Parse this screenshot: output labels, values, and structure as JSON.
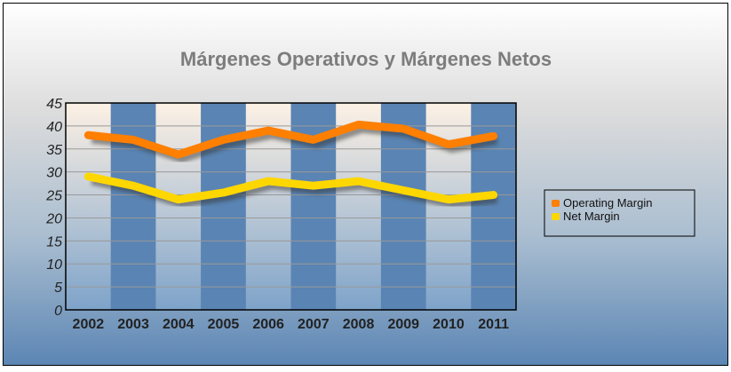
{
  "chart_data": {
    "type": "line",
    "title": "Márgenes Operativos y Márgenes Netos",
    "categories": [
      "2002",
      "2003",
      "2004",
      "2005",
      "2006",
      "2007",
      "2008",
      "2009",
      "2010",
      "2011"
    ],
    "series": [
      {
        "name": "Operating Margin",
        "color": "#ff7f00",
        "values": [
          38,
          37,
          33.8,
          37,
          39,
          37,
          40.3,
          39.4,
          36,
          37.8
        ]
      },
      {
        "name": "Net Margin",
        "color": "#ffd700",
        "values": [
          29,
          27,
          24,
          25.5,
          28,
          27,
          28,
          26,
          24,
          25
        ]
      }
    ],
    "ylim": [
      0,
      45
    ],
    "yticks": [
      "0",
      "5",
      "10",
      "15",
      "20",
      "25",
      "30",
      "35",
      "40",
      "45"
    ],
    "xlabel": "",
    "ylabel": "",
    "legend": "right"
  }
}
